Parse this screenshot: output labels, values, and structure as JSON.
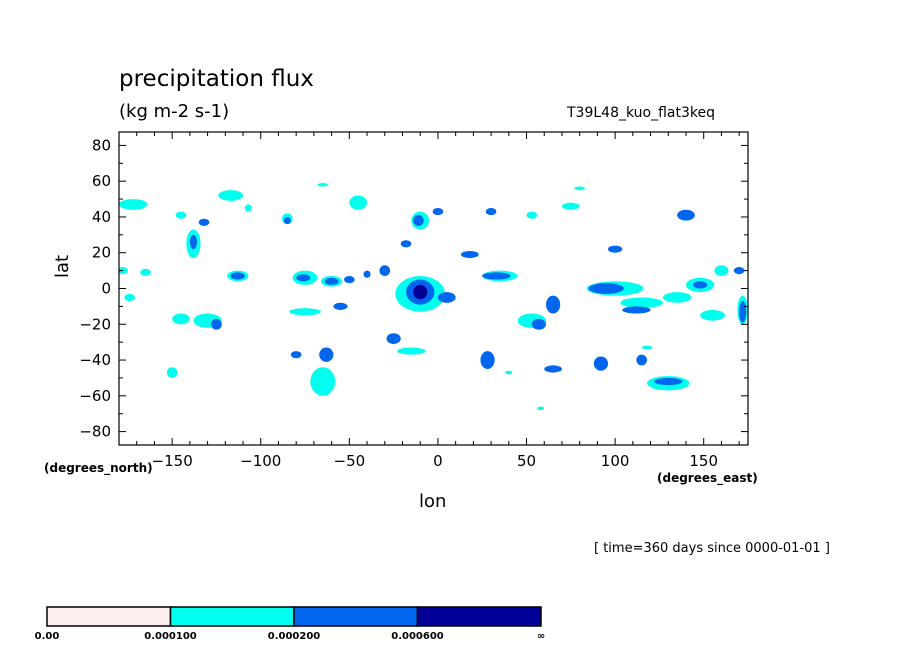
{
  "chart_data": {
    "type": "heatmap",
    "title": "precipitation flux",
    "units": "(kg m-2 s-1)",
    "run_id": "T39L48_kuo_flat3keq",
    "xlabel": "lon",
    "ylabel": "lat",
    "x_units": "(degrees_east)",
    "y_units": "(degrees_north)",
    "time_label": "[ time=360 days since 0000-01-01 ]",
    "xlim": [
      -180,
      175
    ],
    "ylim": [
      -87.5,
      87.5
    ],
    "x_ticks": [
      -150,
      -100,
      -50,
      0,
      50,
      100,
      150
    ],
    "y_ticks": [
      80,
      60,
      40,
      20,
      0,
      -20,
      -40,
      -60,
      -80
    ],
    "grid": false,
    "legend_position": "bottom",
    "levels": [
      "0.00",
      "0.000100",
      "0.000200",
      "0.000600",
      "∞"
    ],
    "level_colors": [
      "#ffeeee",
      "#00ffee",
      "#0066ee",
      "#000099"
    ],
    "regions": [
      {
        "lon": -172,
        "lat": 47,
        "rx": 8,
        "ry": 3,
        "level": 1
      },
      {
        "lon": -174,
        "lat": -5,
        "rx": 3,
        "ry": 2,
        "level": 1
      },
      {
        "lon": -178,
        "lat": 10,
        "rx": 3,
        "ry": 2,
        "level": 1
      },
      {
        "lon": -165,
        "lat": 9,
        "rx": 3,
        "ry": 2,
        "level": 1
      },
      {
        "lon": -138,
        "lat": 25,
        "rx": 4,
        "ry": 8,
        "level": 1
      },
      {
        "lon": -138,
        "lat": 26,
        "rx": 2,
        "ry": 4,
        "level": 2
      },
      {
        "lon": -145,
        "lat": 41,
        "rx": 3,
        "ry": 2,
        "level": 1
      },
      {
        "lon": -132,
        "lat": 37,
        "rx": 3,
        "ry": 2,
        "level": 2
      },
      {
        "lon": -117,
        "lat": 52,
        "rx": 7,
        "ry": 3,
        "level": 1
      },
      {
        "lon": -107,
        "lat": 45,
        "rx": 2,
        "ry": 2,
        "level": 1
      },
      {
        "lon": -113,
        "lat": 7,
        "rx": 6,
        "ry": 3,
        "level": 1
      },
      {
        "lon": -113,
        "lat": 7,
        "rx": 4,
        "ry": 2,
        "level": 2
      },
      {
        "lon": -85,
        "lat": 39,
        "rx": 3,
        "ry": 3,
        "level": 1
      },
      {
        "lon": -85,
        "lat": 38,
        "rx": 2,
        "ry": 2,
        "level": 2
      },
      {
        "lon": -75,
        "lat": 6,
        "rx": 7,
        "ry": 4,
        "level": 1
      },
      {
        "lon": -76,
        "lat": 6,
        "rx": 4,
        "ry": 2,
        "level": 2
      },
      {
        "lon": -60,
        "lat": 4,
        "rx": 6,
        "ry": 3,
        "level": 1
      },
      {
        "lon": -60,
        "lat": 4,
        "rx": 4,
        "ry": 2,
        "level": 2
      },
      {
        "lon": -50,
        "lat": 5,
        "rx": 3,
        "ry": 2,
        "level": 2
      },
      {
        "lon": -40,
        "lat": 8,
        "rx": 2,
        "ry": 2,
        "level": 2
      },
      {
        "lon": -30,
        "lat": 10,
        "rx": 3,
        "ry": 3,
        "level": 2
      },
      {
        "lon": -65,
        "lat": 58,
        "rx": 3,
        "ry": 1,
        "level": 1
      },
      {
        "lon": -45,
        "lat": 48,
        "rx": 5,
        "ry": 4,
        "level": 1
      },
      {
        "lon": -10,
        "lat": 38,
        "rx": 5,
        "ry": 5,
        "level": 1
      },
      {
        "lon": -11,
        "lat": 38,
        "rx": 3,
        "ry": 3,
        "level": 2
      },
      {
        "lon": -18,
        "lat": 25,
        "rx": 3,
        "ry": 2,
        "level": 2
      },
      {
        "lon": 0,
        "lat": 43,
        "rx": 3,
        "ry": 2,
        "level": 2
      },
      {
        "lon": 18,
        "lat": 19,
        "rx": 5,
        "ry": 2,
        "level": 2
      },
      {
        "lon": 30,
        "lat": 43,
        "rx": 3,
        "ry": 2,
        "level": 2
      },
      {
        "lon": 35,
        "lat": 7,
        "rx": 10,
        "ry": 3,
        "level": 1
      },
      {
        "lon": 33,
        "lat": 7,
        "rx": 8,
        "ry": 2,
        "level": 2
      },
      {
        "lon": -10,
        "lat": -3,
        "rx": 14,
        "ry": 10,
        "level": 1
      },
      {
        "lon": -10,
        "lat": -2,
        "rx": 8,
        "ry": 7,
        "level": 2
      },
      {
        "lon": -10,
        "lat": -2,
        "rx": 4,
        "ry": 4,
        "level": 3
      },
      {
        "lon": 5,
        "lat": -5,
        "rx": 5,
        "ry": 3,
        "level": 2
      },
      {
        "lon": -130,
        "lat": -18,
        "rx": 8,
        "ry": 4,
        "level": 1
      },
      {
        "lon": -125,
        "lat": -20,
        "rx": 3,
        "ry": 3,
        "level": 2
      },
      {
        "lon": -145,
        "lat": -17,
        "rx": 5,
        "ry": 3,
        "level": 1
      },
      {
        "lon": -75,
        "lat": -13,
        "rx": 9,
        "ry": 2,
        "level": 1
      },
      {
        "lon": -55,
        "lat": -10,
        "rx": 4,
        "ry": 2,
        "level": 2
      },
      {
        "lon": -25,
        "lat": -28,
        "rx": 4,
        "ry": 3,
        "level": 2
      },
      {
        "lon": -15,
        "lat": -35,
        "rx": 8,
        "ry": 2,
        "level": 1
      },
      {
        "lon": -80,
        "lat": -37,
        "rx": 3,
        "ry": 2,
        "level": 2
      },
      {
        "lon": -63,
        "lat": -37,
        "rx": 4,
        "ry": 4,
        "level": 2
      },
      {
        "lon": -65,
        "lat": -52,
        "rx": 7,
        "ry": 8,
        "level": 1
      },
      {
        "lon": -150,
        "lat": -47,
        "rx": 3,
        "ry": 3,
        "level": 1
      },
      {
        "lon": 28,
        "lat": -40,
        "rx": 4,
        "ry": 5,
        "level": 2
      },
      {
        "lon": 53,
        "lat": -18,
        "rx": 8,
        "ry": 4,
        "level": 1
      },
      {
        "lon": 57,
        "lat": -20,
        "rx": 4,
        "ry": 3,
        "level": 2
      },
      {
        "lon": 65,
        "lat": -9,
        "rx": 4,
        "ry": 5,
        "level": 2
      },
      {
        "lon": 65,
        "lat": -45,
        "rx": 5,
        "ry": 2,
        "level": 2
      },
      {
        "lon": 75,
        "lat": 46,
        "rx": 5,
        "ry": 2,
        "level": 1
      },
      {
        "lon": 80,
        "lat": 56,
        "rx": 3,
        "ry": 1,
        "level": 1
      },
      {
        "lon": 53,
        "lat": 41,
        "rx": 3,
        "ry": 2,
        "level": 1
      },
      {
        "lon": 100,
        "lat": 22,
        "rx": 4,
        "ry": 2,
        "level": 2
      },
      {
        "lon": 100,
        "lat": 0,
        "rx": 16,
        "ry": 4,
        "level": 1
      },
      {
        "lon": 95,
        "lat": 0,
        "rx": 10,
        "ry": 3,
        "level": 2
      },
      {
        "lon": 115,
        "lat": -8,
        "rx": 12,
        "ry": 3,
        "level": 1
      },
      {
        "lon": 112,
        "lat": -12,
        "rx": 8,
        "ry": 2,
        "level": 2
      },
      {
        "lon": 135,
        "lat": -5,
        "rx": 8,
        "ry": 3,
        "level": 1
      },
      {
        "lon": 155,
        "lat": -15,
        "rx": 7,
        "ry": 3,
        "level": 1
      },
      {
        "lon": 148,
        "lat": 2,
        "rx": 8,
        "ry": 4,
        "level": 1
      },
      {
        "lon": 148,
        "lat": 2,
        "rx": 4,
        "ry": 2,
        "level": 2
      },
      {
        "lon": 140,
        "lat": 41,
        "rx": 5,
        "ry": 3,
        "level": 2
      },
      {
        "lon": 160,
        "lat": 10,
        "rx": 4,
        "ry": 3,
        "level": 1
      },
      {
        "lon": 170,
        "lat": 10,
        "rx": 3,
        "ry": 2,
        "level": 2
      },
      {
        "lon": 172,
        "lat": -12,
        "rx": 3,
        "ry": 8,
        "level": 1
      },
      {
        "lon": 172,
        "lat": -13,
        "rx": 2,
        "ry": 6,
        "level": 2
      },
      {
        "lon": 92,
        "lat": -42,
        "rx": 4,
        "ry": 4,
        "level": 2
      },
      {
        "lon": 115,
        "lat": -40,
        "rx": 3,
        "ry": 3,
        "level": 2
      },
      {
        "lon": 130,
        "lat": -53,
        "rx": 12,
        "ry": 4,
        "level": 1
      },
      {
        "lon": 130,
        "lat": -52,
        "rx": 8,
        "ry": 2,
        "level": 2
      },
      {
        "lon": 118,
        "lat": -33,
        "rx": 3,
        "ry": 1,
        "level": 1
      },
      {
        "lon": 40,
        "lat": -47,
        "rx": 2,
        "ry": 1,
        "level": 1
      },
      {
        "lon": 58,
        "lat": -67,
        "rx": 2,
        "ry": 1,
        "level": 1
      }
    ]
  }
}
